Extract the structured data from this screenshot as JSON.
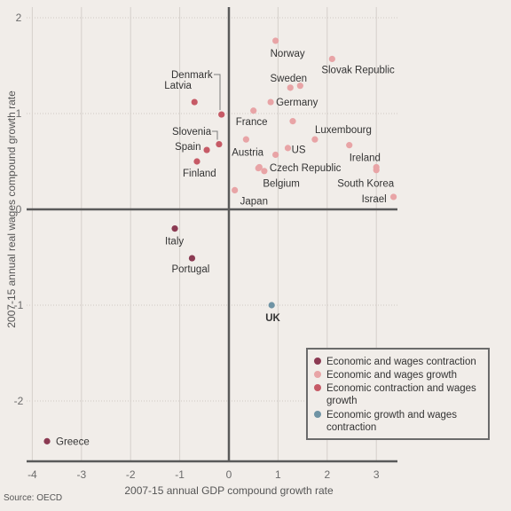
{
  "chart_data": {
    "type": "scatter",
    "xlabel": "2007-15 annual GDP compound growth rate",
    "ylabel": "2007-15 annual real wages compound growth rate",
    "xlim": [
      -4,
      3.35
    ],
    "ylim": [
      -2.6,
      2.1
    ],
    "xticks": [
      -4,
      -3,
      -2,
      -1,
      0,
      1,
      2,
      3
    ],
    "yticks": [
      -2,
      -1,
      0,
      1,
      2
    ],
    "grid": true,
    "source": "Source: OECD",
    "legend_position": "bottom-right",
    "series": [
      {
        "name": "Economic and wages contraction",
        "color": "#8b3a52"
      },
      {
        "name": "Economic and wages growth",
        "color": "#e8a4a6"
      },
      {
        "name": "Economic contraction and wages growth",
        "color": "#c65a66"
      },
      {
        "name": "Economic growth and wages contraction",
        "color": "#6f93a4"
      }
    ],
    "points": [
      {
        "label": "Norway",
        "x": 0.95,
        "y": 1.76,
        "series": 1
      },
      {
        "label": "Slovak Republic",
        "x": 2.1,
        "y": 1.57,
        "series": 1
      },
      {
        "label": "Sweden",
        "x": 1.25,
        "y": 1.27,
        "series": 1
      },
      {
        "label": "",
        "x": 1.45,
        "y": 1.29,
        "series": 1
      },
      {
        "label": "Germany",
        "x": 0.85,
        "y": 1.12,
        "series": 1
      },
      {
        "label": "France",
        "x": 0.5,
        "y": 1.03,
        "series": 1
      },
      {
        "label": "",
        "x": 1.3,
        "y": 0.92,
        "series": 1
      },
      {
        "label": "Luxembourg",
        "x": 1.75,
        "y": 0.73,
        "series": 1
      },
      {
        "label": "",
        "x": 0.35,
        "y": 0.73,
        "series": 1
      },
      {
        "label": "",
        "x": 1.2,
        "y": 0.64,
        "series": 1
      },
      {
        "label": "Austria",
        "x": 0.6,
        "y": 0.43,
        "series": 1
      },
      {
        "label": "US",
        "x": 0.95,
        "y": 0.57,
        "series": 1
      },
      {
        "label": "Ireland",
        "x": 2.45,
        "y": 0.67,
        "series": 1
      },
      {
        "label": "Czech Republic",
        "x": 0.72,
        "y": 0.4,
        "series": 1
      },
      {
        "label": "Belgium",
        "x": 0.62,
        "y": 0.44,
        "series": 1
      },
      {
        "label": "South Korea",
        "x": 3.0,
        "y": 0.41,
        "series": 1
      },
      {
        "label": "",
        "x": 3.0,
        "y": 0.44,
        "series": 1
      },
      {
        "label": "Israel",
        "x": 3.35,
        "y": 0.13,
        "series": 1
      },
      {
        "label": "Japan",
        "x": 0.12,
        "y": 0.2,
        "series": 1
      },
      {
        "label": "Denmark",
        "x": -0.15,
        "y": 0.99,
        "series": 2
      },
      {
        "label": "Latvia",
        "x": -0.7,
        "y": 1.12,
        "series": 2
      },
      {
        "label": "Slovenia",
        "x": -0.2,
        "y": 0.68,
        "series": 2
      },
      {
        "label": "Spain",
        "x": -0.45,
        "y": 0.62,
        "series": 2
      },
      {
        "label": "Finland",
        "x": -0.65,
        "y": 0.5,
        "series": 2
      },
      {
        "label": "Italy",
        "x": -1.1,
        "y": -0.2,
        "series": 0
      },
      {
        "label": "Portugal",
        "x": -0.75,
        "y": -0.51,
        "series": 0
      },
      {
        "label": "UK",
        "x": 0.87,
        "y": -1.0,
        "series": 3
      },
      {
        "label": "Greece",
        "x": -3.7,
        "y": -2.42,
        "series": 0
      }
    ]
  }
}
